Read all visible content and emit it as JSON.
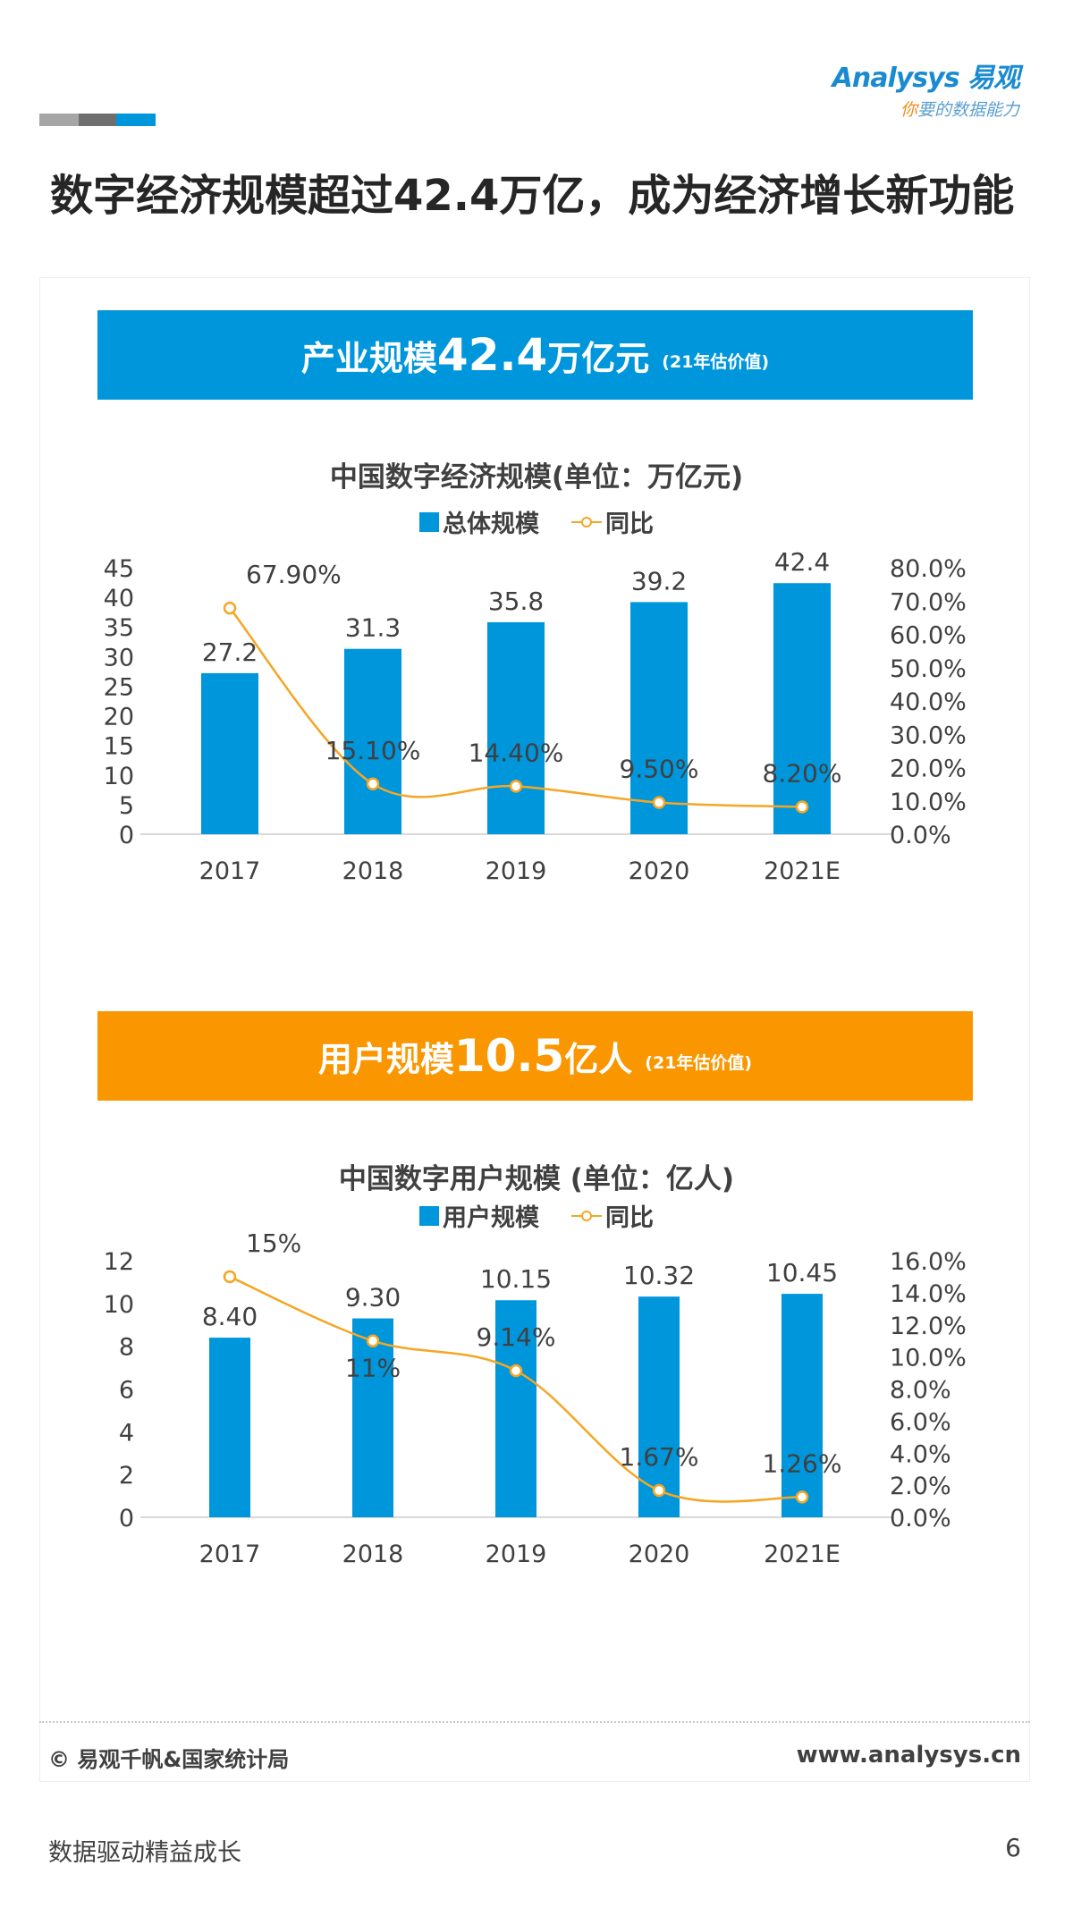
{
  "header": {
    "logo_text": "Analysys 易观",
    "logo_slogan_first": "你",
    "logo_slogan_rest": "要的数据能力",
    "bar_colors": [
      "#a6a6a6",
      "#6e6e6e",
      "#0096dc"
    ],
    "title": "数字经济规模超过42.4万亿，成为经济增长新功能"
  },
  "banners": [
    {
      "label": "产业规模",
      "value": "42.4",
      "unit": "万亿元",
      "note": "(21年估价值)",
      "color": "#0096dc"
    },
    {
      "label": "用户规模",
      "value": "10.5",
      "unit": "亿人",
      "note": "(21年估价值)",
      "color": "#fa9600"
    }
  ],
  "chart_data": [
    {
      "type": "bar+line",
      "title": "中国数字经济规模(单位：万亿元)",
      "categories": [
        "2017",
        "2018",
        "2019",
        "2020",
        "2021E"
      ],
      "series": [
        {
          "name": "总体规模",
          "type": "bar",
          "axis": "left",
          "values": [
            27.2,
            31.3,
            35.8,
            39.2,
            42.4
          ],
          "labels": [
            "27.2",
            "31.3",
            "35.8",
            "39.2",
            "42.4"
          ],
          "color": "#0096dc"
        },
        {
          "name": "同比",
          "type": "line",
          "axis": "right",
          "values": [
            67.9,
            15.1,
            14.4,
            9.5,
            8.2
          ],
          "labels": [
            "67.90%",
            "15.10%",
            "14.40%",
            "9.50%",
            "8.20%"
          ],
          "color": "#f5a623"
        }
      ],
      "left_axis": {
        "range": [
          0,
          45
        ],
        "ticks": [
          "0",
          "5",
          "10",
          "15",
          "20",
          "25",
          "30",
          "35",
          "40",
          "45"
        ]
      },
      "right_axis": {
        "range": [
          0,
          80
        ],
        "ticks": [
          "0.0%",
          "10.0%",
          "20.0%",
          "30.0%",
          "40.0%",
          "50.0%",
          "60.0%",
          "70.0%",
          "80.0%"
        ]
      },
      "grid": false,
      "legend": "top"
    },
    {
      "type": "bar+line",
      "title": "中国数字用户规模 (单位：亿人)",
      "categories": [
        "2017",
        "2018",
        "2019",
        "2020",
        "2021E"
      ],
      "series": [
        {
          "name": "用户规模",
          "type": "bar",
          "axis": "left",
          "values": [
            8.4,
            9.3,
            10.15,
            10.32,
            10.45
          ],
          "labels": [
            "8.40",
            "9.30",
            "10.15",
            "10.32",
            "10.45"
          ],
          "color": "#0096dc"
        },
        {
          "name": "同比",
          "type": "line",
          "axis": "right",
          "values": [
            15,
            11,
            9.14,
            1.67,
            1.26
          ],
          "labels": [
            "15%",
            "11%",
            "9.14%",
            "1.67%",
            "1.26%"
          ],
          "color": "#f5a623"
        }
      ],
      "left_axis": {
        "range": [
          0,
          12
        ],
        "ticks": [
          "0",
          "2",
          "4",
          "6",
          "8",
          "10",
          "12"
        ]
      },
      "right_axis": {
        "range": [
          0,
          16
        ],
        "ticks": [
          "0.0%",
          "2.0%",
          "4.0%",
          "6.0%",
          "8.0%",
          "10.0%",
          "12.0%",
          "14.0%",
          "16.0%"
        ]
      },
      "grid": false,
      "legend": "top"
    }
  ],
  "footer": {
    "source": "© 易观千帆&国家统计局",
    "site": "www.analysys.cn",
    "tagline": "数据驱动精益成长",
    "page_number": "6"
  }
}
